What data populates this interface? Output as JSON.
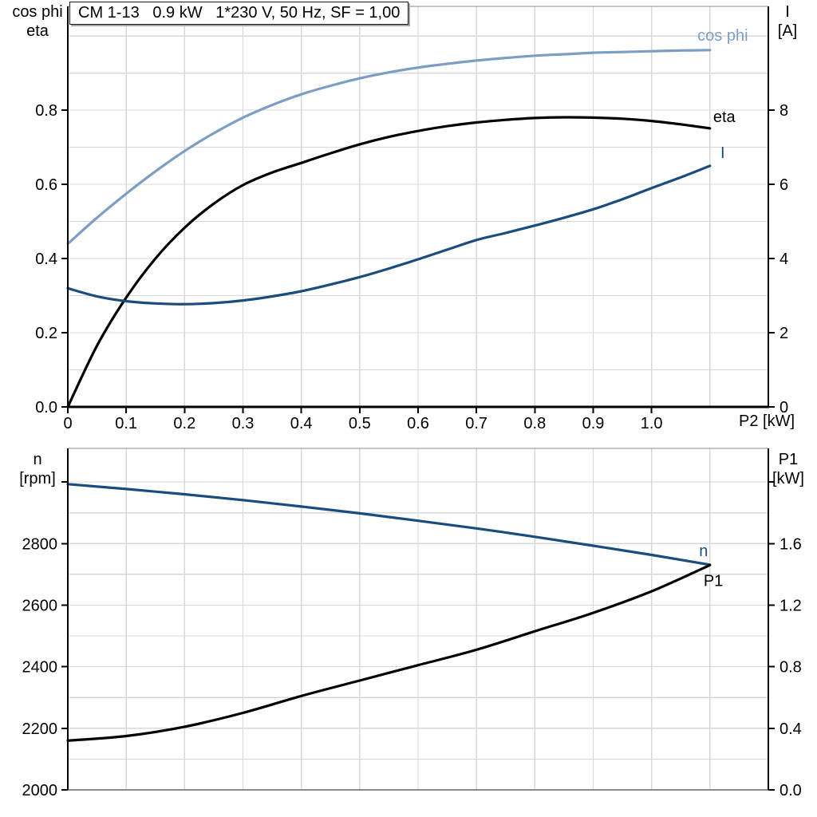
{
  "title_box": "CM 1-13   0.9 kW   1*230 V, 50 Hz, SF = 1,00",
  "colors": {
    "cos_phi": "#7D9EC3",
    "current": "#1B4C7E",
    "eta": "#000000",
    "n": "#1B4C7E",
    "p1": "#000000",
    "grid": "#D8D8D8",
    "frame": "#8C8C8C",
    "axis": "#000000",
    "text": "#000000"
  },
  "top_chart_labels": {
    "left_line1": "cos phi",
    "left_line2": "eta",
    "right_line1": "I",
    "right_line2": "[A]",
    "x_title": "P2 [kW]"
  },
  "bottom_chart_labels": {
    "left_line1": "n",
    "left_line2": "[rpm]",
    "right_line1": "P1",
    "right_line2": "[kW]"
  },
  "chart_data": [
    {
      "type": "line",
      "title": "CM 1-13   0.9 kW   1*230 V, 50 Hz, SF = 1,00",
      "xlabel": "P2 [kW]",
      "x_range": [
        0,
        1.2
      ],
      "grid": true,
      "legend_position": "line-end-labels",
      "x_ticks": {
        "values": [
          0,
          0.1,
          0.2,
          0.3,
          0.4,
          0.5,
          0.6,
          0.7,
          0.8,
          0.9,
          1.0
        ],
        "labels": [
          "0",
          "0.1",
          "0.2",
          "0.3",
          "0.4",
          "0.5",
          "0.6",
          "0.7",
          "0.8",
          "0.9",
          "1.0"
        ],
        "grid_min": 0.1,
        "grid_max": 1.1,
        "grid_step": 0.1
      },
      "left_axis": {
        "title": "cos phi / eta",
        "range": [
          0,
          1.08
        ],
        "tick_values": [
          0,
          0.2,
          0.4,
          0.6,
          0.8
        ],
        "tick_labels": [
          "0.0",
          "0.2",
          "0.4",
          "0.6",
          "0.8"
        ],
        "extra_tick_values": [],
        "grid_min": 0.1,
        "grid_max": 1.0,
        "grid_step": 0.1
      },
      "right_axis": {
        "title": "I [A]",
        "range": [
          0,
          10.8
        ],
        "tick_values": [
          0,
          2,
          4,
          6,
          8
        ],
        "tick_labels": [
          "0",
          "2",
          "4",
          "6",
          "8"
        ],
        "extra_tick_values": []
      },
      "x": [
        0,
        0.05,
        0.1,
        0.15,
        0.2,
        0.25,
        0.3,
        0.35,
        0.4,
        0.45,
        0.5,
        0.55,
        0.6,
        0.65,
        0.7,
        0.75,
        0.8,
        0.85,
        0.9,
        0.95,
        1.0,
        1.05,
        1.1
      ],
      "series": [
        {
          "name": "cos phi",
          "axis": "left",
          "color_key": "cos_phi",
          "values": [
            0.44,
            0.51,
            0.575,
            0.635,
            0.69,
            0.738,
            0.78,
            0.814,
            0.843,
            0.866,
            0.886,
            0.902,
            0.915,
            0.925,
            0.934,
            0.941,
            0.947,
            0.951,
            0.955,
            0.957,
            0.959,
            0.961,
            0.962
          ]
        },
        {
          "name": "eta",
          "axis": "left",
          "color_key": "eta",
          "values": [
            0,
            0.165,
            0.295,
            0.4,
            0.483,
            0.548,
            0.598,
            0.632,
            0.658,
            0.684,
            0.708,
            0.728,
            0.744,
            0.757,
            0.767,
            0.774,
            0.779,
            0.781,
            0.78,
            0.777,
            0.771,
            0.762,
            0.751
          ]
        },
        {
          "name": "I",
          "axis": "right",
          "color_key": "current",
          "values": [
            3.2,
            2.98,
            2.85,
            2.79,
            2.77,
            2.8,
            2.87,
            2.98,
            3.12,
            3.3,
            3.5,
            3.73,
            3.98,
            4.24,
            4.5,
            4.69,
            4.89,
            5.1,
            5.33,
            5.6,
            5.9,
            6.19,
            6.5
          ]
        }
      ]
    },
    {
      "type": "line",
      "title": "",
      "xlabel": "",
      "x_range": [
        0,
        1.2
      ],
      "grid": true,
      "legend_position": "line-end-labels",
      "x_ticks": {
        "values": [],
        "labels": [],
        "grid_min": 0.1,
        "grid_max": 1.1,
        "grid_step": 0.1
      },
      "left_axis": {
        "title": "n [rpm]",
        "range": [
          2000,
          3109
        ],
        "tick_values": [
          2000,
          2200,
          2400,
          2600,
          2800
        ],
        "tick_labels": [
          "2000",
          "2200",
          "2400",
          "2600",
          "2800"
        ],
        "extra_tick_values": [
          3000
        ],
        "grid_min": 2100,
        "grid_max": 3000,
        "grid_step": 100
      },
      "right_axis": {
        "title": "P1 [kW]",
        "range": [
          0,
          2.218
        ],
        "tick_values": [
          0,
          0.4,
          0.8,
          1.2,
          1.6
        ],
        "tick_labels": [
          "0.0",
          "0.4",
          "0.8",
          "1.2",
          "1.6"
        ],
        "extra_tick_values": [
          2.0
        ]
      },
      "x": [
        0,
        0.1,
        0.2,
        0.3,
        0.4,
        0.5,
        0.6,
        0.7,
        0.8,
        0.9,
        1.0,
        1.1
      ],
      "series": [
        {
          "name": "n",
          "axis": "left",
          "color_key": "n",
          "values": [
            2993,
            2977,
            2960,
            2941,
            2920,
            2898,
            2874,
            2849,
            2822,
            2793,
            2763,
            2731
          ]
        },
        {
          "name": "P1",
          "axis": "right",
          "color_key": "p1",
          "values": [
            0.32,
            0.35,
            0.41,
            0.5,
            0.61,
            0.71,
            0.81,
            0.91,
            1.03,
            1.15,
            1.29,
            1.46
          ]
        }
      ]
    }
  ]
}
